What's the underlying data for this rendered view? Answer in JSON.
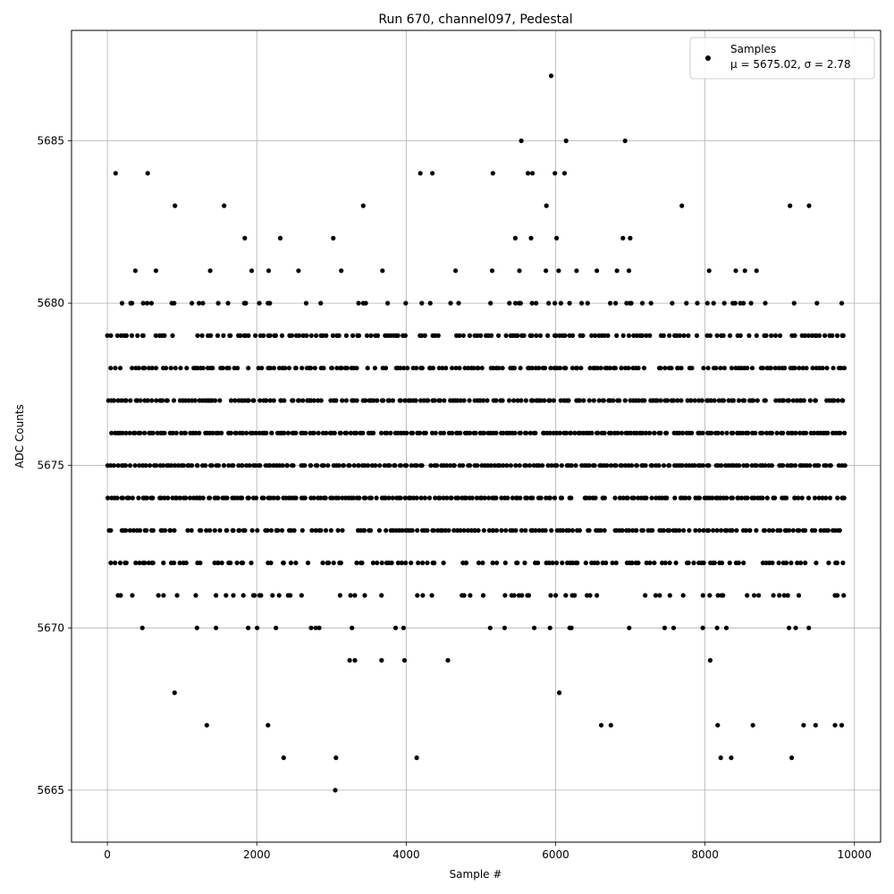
{
  "chart_data": {
    "type": "scatter",
    "title": "Run 670, channel097, Pedestal",
    "xlabel": "Sample #",
    "ylabel": "ADC Counts",
    "xlim": [
      -480,
      10350
    ],
    "ylim": [
      5663.4,
      5688.4
    ],
    "xticks": [
      0,
      2000,
      4000,
      6000,
      8000,
      10000
    ],
    "yticks": [
      5665,
      5670,
      5675,
      5680,
      5685
    ],
    "xtick_labels": [
      "0",
      "2000",
      "4000",
      "6000",
      "8000",
      "10000"
    ],
    "ytick_labels": [
      "5665",
      "5670",
      "5675",
      "5680",
      "5685"
    ],
    "grid": true,
    "legend_position": "top-right",
    "marker_color": "#000000",
    "series": [
      {
        "name": "Samples",
        "stats_label": "μ = 5675.02, σ = 2.78",
        "x_range": [
          0,
          9850
        ],
        "n_points": 9850,
        "levels": [
          5665,
          5666,
          5667,
          5668,
          5669,
          5670,
          5671,
          5672,
          5673,
          5674,
          5675,
          5676,
          5677,
          5678,
          5679,
          5680,
          5681,
          5682,
          5683,
          5684,
          5685,
          5687
        ],
        "highlight_points": [
          {
            "x": 3050,
            "y": 5665
          },
          {
            "x": 2360,
            "y": 5666
          },
          {
            "x": 3060,
            "y": 5666
          },
          {
            "x": 4140,
            "y": 5666
          },
          {
            "x": 8210,
            "y": 5666
          },
          {
            "x": 8350,
            "y": 5666
          },
          {
            "x": 9160,
            "y": 5666
          },
          {
            "x": 1330,
            "y": 5667
          },
          {
            "x": 2150,
            "y": 5667
          },
          {
            "x": 6610,
            "y": 5667
          },
          {
            "x": 6740,
            "y": 5667
          },
          {
            "x": 8170,
            "y": 5667
          },
          {
            "x": 8640,
            "y": 5667
          },
          {
            "x": 9320,
            "y": 5667
          },
          {
            "x": 9480,
            "y": 5667
          },
          {
            "x": 9740,
            "y": 5667
          },
          {
            "x": 9830,
            "y": 5667
          },
          {
            "x": 5540,
            "y": 5685
          },
          {
            "x": 6140,
            "y": 5685
          },
          {
            "x": 6930,
            "y": 5685
          },
          {
            "x": 5940,
            "y": 5687
          },
          {
            "x": 110,
            "y": 5684
          },
          {
            "x": 540,
            "y": 5684
          },
          {
            "x": 4190,
            "y": 5684
          },
          {
            "x": 4350,
            "y": 5684
          },
          {
            "x": 5160,
            "y": 5684
          },
          {
            "x": 5630,
            "y": 5684
          },
          {
            "x": 5690,
            "y": 5684
          },
          {
            "x": 5990,
            "y": 5684
          },
          {
            "x": 6120,
            "y": 5684
          }
        ]
      }
    ]
  }
}
